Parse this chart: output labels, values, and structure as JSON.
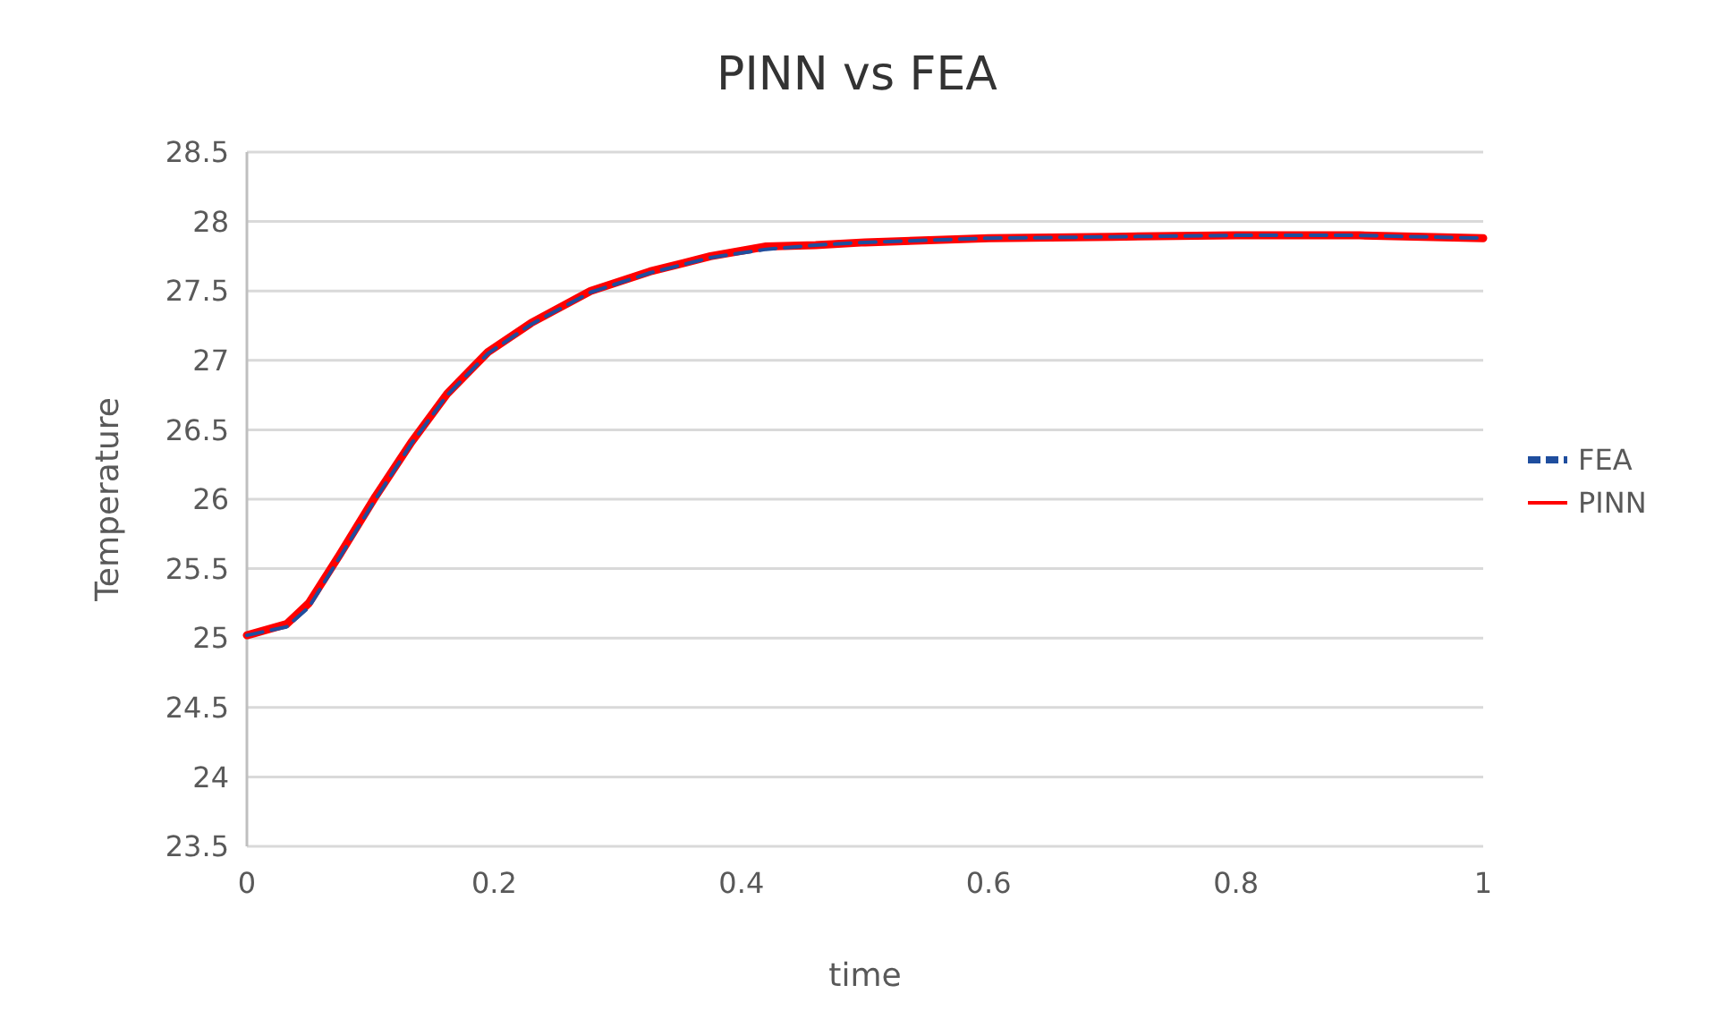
{
  "chart_data": {
    "type": "line",
    "title": "PINN vs FEA",
    "xlabel": "time",
    "ylabel": "Temperature",
    "x": [
      0,
      0.032,
      0.05,
      0.075,
      0.104,
      0.133,
      0.162,
      0.195,
      0.23,
      0.278,
      0.326,
      0.375,
      0.42,
      0.46,
      0.5,
      0.6,
      0.7,
      0.8,
      0.9,
      1
    ],
    "xlim": [
      0,
      1
    ],
    "xticks": [
      0,
      0.2,
      0.4,
      0.6,
      0.8,
      1
    ],
    "ylim": [
      23.5,
      28.5
    ],
    "yticks": [
      23.5,
      24,
      24.5,
      25,
      25.5,
      26,
      26.5,
      27,
      27.5,
      28,
      28.5
    ],
    "grid": "y",
    "legend": "right",
    "marker": "none",
    "series": [
      {
        "name": "FEA",
        "color": "#1f4e9e",
        "line_style": "dashed",
        "values": [
          25.02,
          25.08,
          25.22,
          25.58,
          26.0,
          26.4,
          26.75,
          27.05,
          27.26,
          27.49,
          27.63,
          27.74,
          27.8,
          27.83,
          27.85,
          27.88,
          27.89,
          27.9,
          27.9,
          27.88
        ]
      },
      {
        "name": "PINN",
        "color": "#ff0000",
        "line_style": "solid",
        "values": [
          25.02,
          25.1,
          25.25,
          25.6,
          26.02,
          26.41,
          26.76,
          27.06,
          27.27,
          27.5,
          27.64,
          27.75,
          27.82,
          27.83,
          27.85,
          27.88,
          27.89,
          27.9,
          27.9,
          27.88
        ]
      }
    ]
  }
}
